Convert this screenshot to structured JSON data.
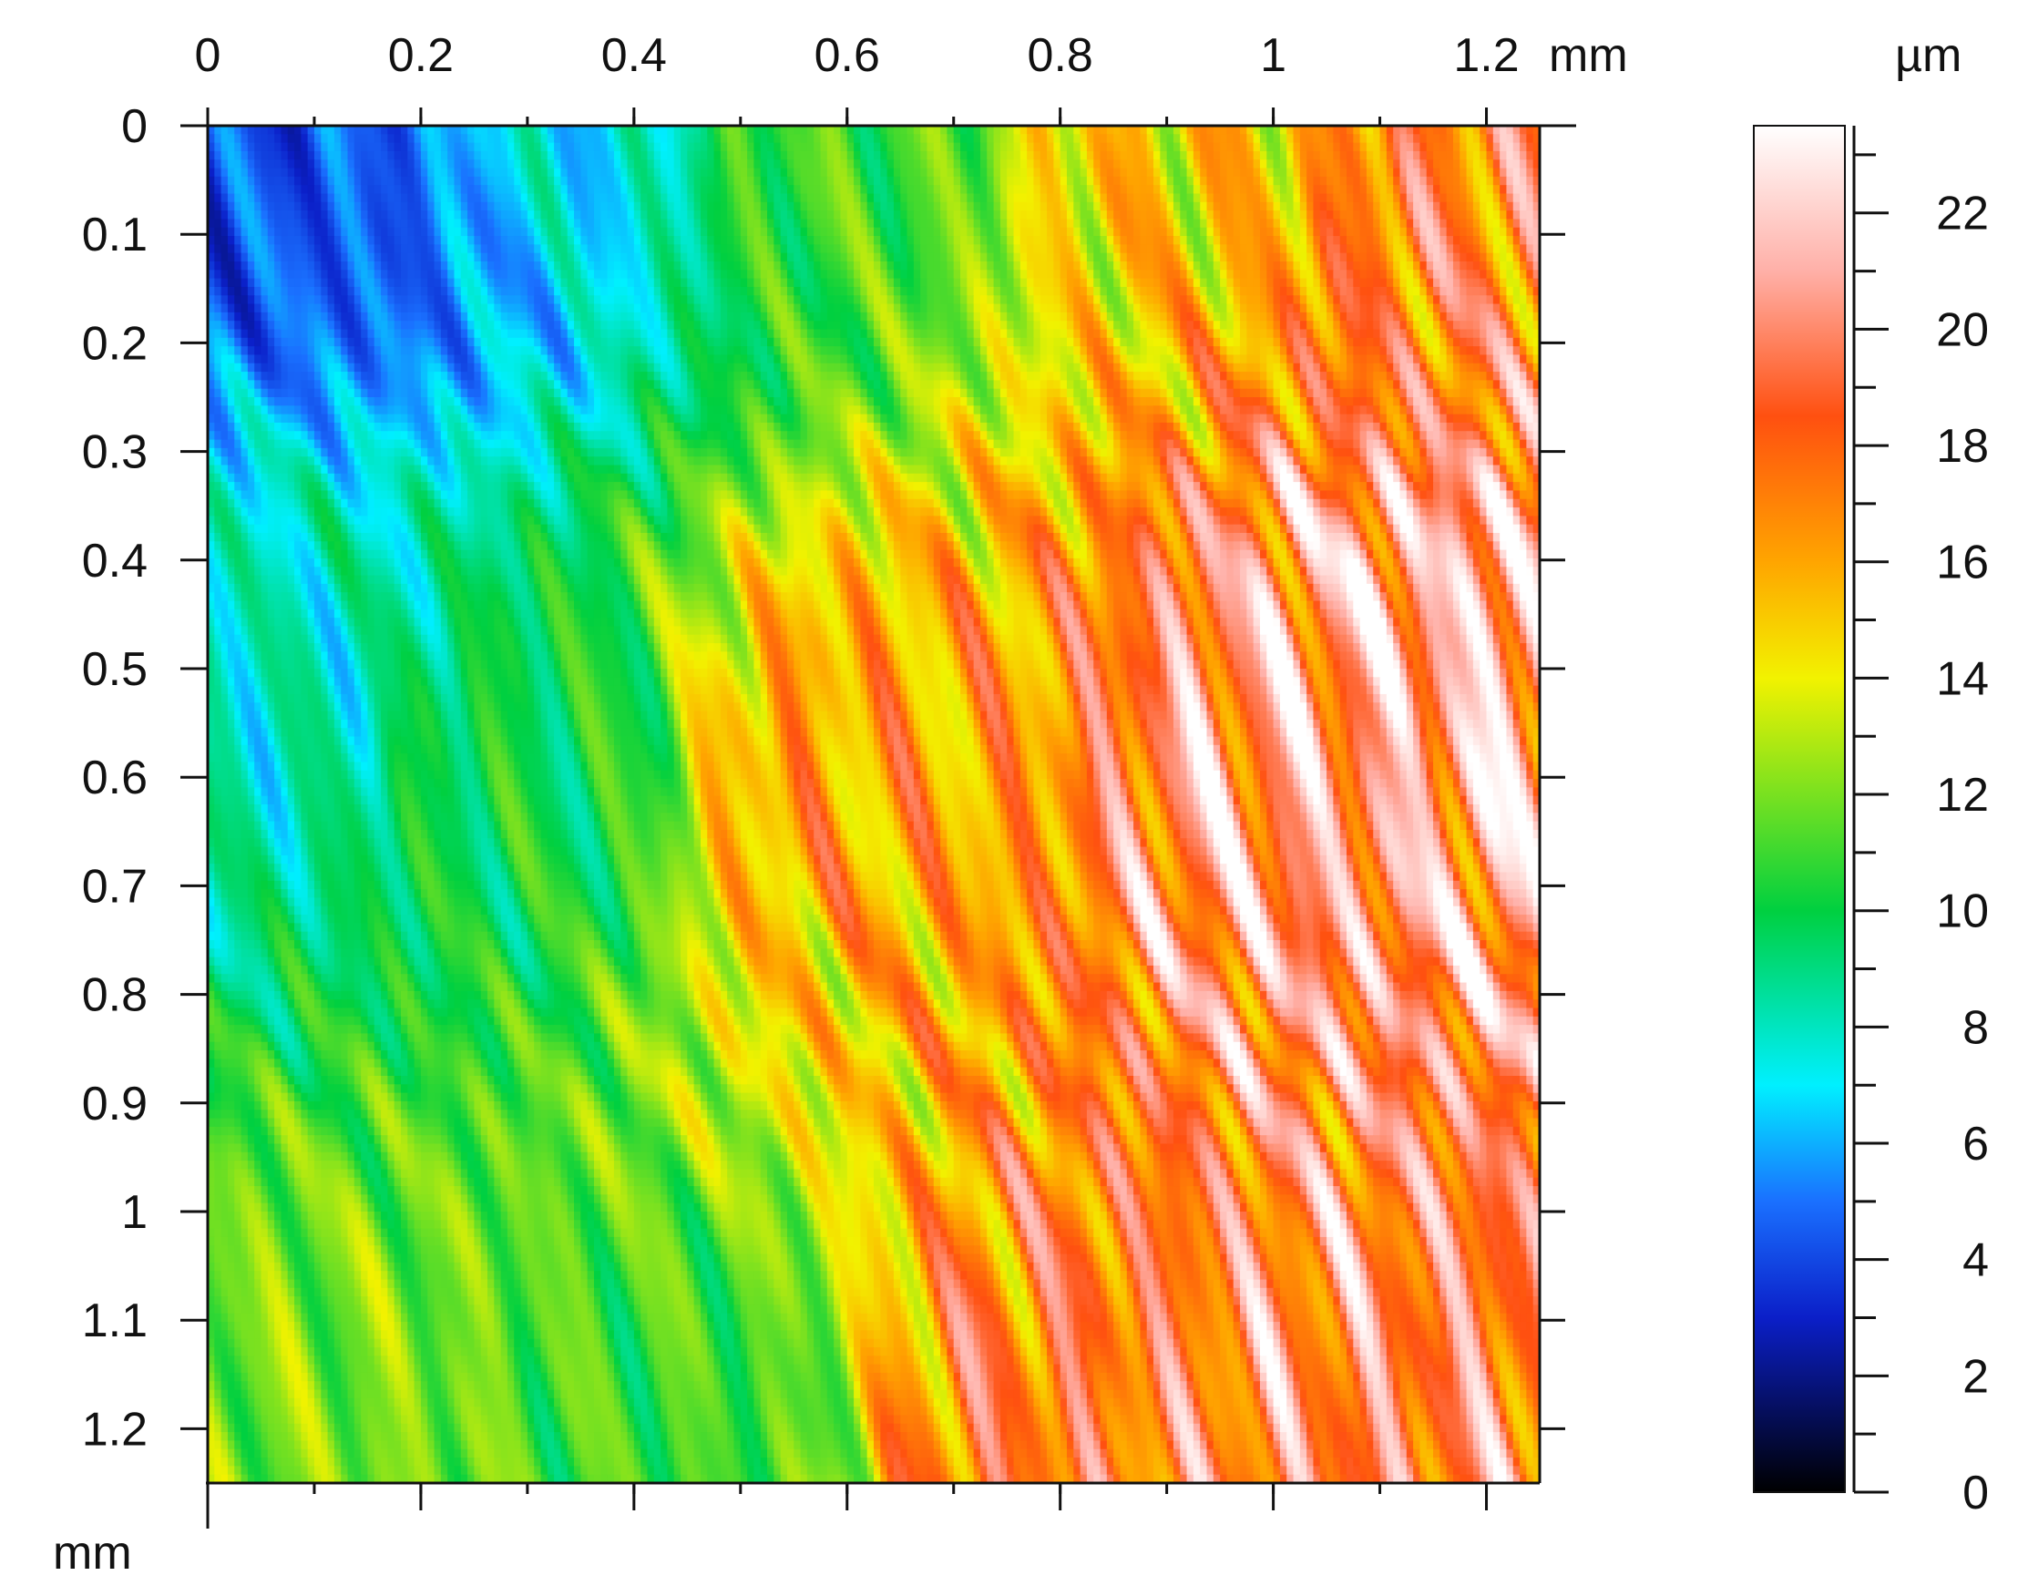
{
  "chart_data": {
    "type": "heatmap",
    "title": "",
    "x_axis": {
      "unit_label": "mm",
      "range": [
        0,
        1.25
      ],
      "ticks": [
        0,
        0.2,
        0.4,
        0.6,
        0.8,
        1,
        1.2
      ],
      "tick_labels": [
        "0",
        "0.2",
        "0.4",
        "0.6",
        "0.8",
        "1",
        "1.2"
      ],
      "position": "top"
    },
    "y_axis": {
      "unit_label": "mm",
      "range": [
        0,
        1.25
      ],
      "ticks": [
        0,
        0.1,
        0.2,
        0.3,
        0.4,
        0.5,
        0.6,
        0.7,
        0.8,
        0.9,
        1,
        1.1,
        1.2
      ],
      "tick_labels": [
        "0",
        "0.1",
        "0.2",
        "0.3",
        "0.4",
        "0.5",
        "0.6",
        "0.7",
        "0.8",
        "0.9",
        "1",
        "1.1",
        "1.2"
      ],
      "inverted": true
    },
    "colorbar": {
      "unit_label": "µm",
      "range": [
        0,
        23.5
      ],
      "ticks": [
        0,
        2,
        4,
        6,
        8,
        10,
        12,
        14,
        16,
        18,
        20,
        22
      ],
      "tick_labels": [
        "0",
        "2",
        "4",
        "6",
        "8",
        "10",
        "12",
        "14",
        "16",
        "18",
        "20",
        "22"
      ],
      "colormap": [
        {
          "v": 0,
          "color": "#000000"
        },
        {
          "v": 3,
          "color": "#0b1fc8"
        },
        {
          "v": 5,
          "color": "#1a70ff"
        },
        {
          "v": 7,
          "color": "#00f0ff"
        },
        {
          "v": 10,
          "color": "#00d040"
        },
        {
          "v": 14,
          "color": "#f2f200"
        },
        {
          "v": 16,
          "color": "#ffa500"
        },
        {
          "v": 18.5,
          "color": "#ff5010"
        },
        {
          "v": 21,
          "color": "#ffb0a8"
        },
        {
          "v": 23.5,
          "color": "#ffffff"
        }
      ]
    },
    "height_field": {
      "description_of_trend": "height increases from upper-left to lower-right",
      "base_points": [
        {
          "x": 0,
          "y": 0,
          "z": 4
        },
        {
          "x": 0.15,
          "y": 0.05,
          "z": 4.5
        },
        {
          "x": 0.3,
          "y": 0,
          "z": 7
        },
        {
          "x": 0.6,
          "y": 0,
          "z": 11
        },
        {
          "x": 0.9,
          "y": 0,
          "z": 15
        },
        {
          "x": 1.2,
          "y": 0.1,
          "z": 18
        },
        {
          "x": 0.05,
          "y": 0.5,
          "z": 8
        },
        {
          "x": 0.3,
          "y": 0.6,
          "z": 10
        },
        {
          "x": 0.6,
          "y": 0.6,
          "z": 16
        },
        {
          "x": 1.05,
          "y": 0.6,
          "z": 20
        },
        {
          "x": 1.2,
          "y": 0.5,
          "z": 21
        },
        {
          "x": 0.1,
          "y": 1.2,
          "z": 12
        },
        {
          "x": 0.45,
          "y": 1.2,
          "z": 11
        },
        {
          "x": 0.8,
          "y": 1.2,
          "z": 18
        },
        {
          "x": 1.1,
          "y": 1.2,
          "z": 19
        }
      ]
    }
  }
}
